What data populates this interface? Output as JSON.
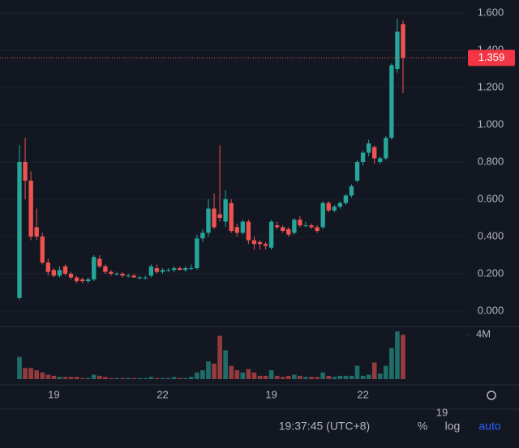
{
  "chart_data": {
    "type": "candlestick",
    "categories": [
      null,
      null,
      null,
      null,
      null,
      null,
      "19",
      null,
      null,
      null,
      null,
      null,
      null,
      null,
      null,
      null,
      null,
      null,
      null,
      null,
      null,
      null,
      null,
      null,
      null,
      "22",
      null,
      null,
      null,
      null,
      null,
      null,
      null,
      null,
      null,
      null,
      null,
      null,
      null,
      null,
      null,
      null,
      null,
      null,
      "19",
      null,
      null,
      null,
      null,
      null,
      null,
      null,
      null,
      null,
      null,
      null,
      null,
      null,
      null,
      null,
      "22",
      null,
      null,
      null,
      null,
      null,
      null,
      null
    ],
    "open": [
      0.07,
      0.8,
      0.7,
      0.45,
      0.4,
      0.26,
      0.22,
      0.19,
      0.24,
      0.2,
      0.18,
      0.17,
      0.16,
      0.17,
      0.28,
      0.24,
      0.21,
      0.2,
      0.2,
      0.19,
      0.19,
      0.18,
      0.18,
      0.19,
      0.23,
      0.21,
      0.22,
      0.22,
      0.23,
      0.22,
      0.23,
      0.23,
      0.39,
      0.42,
      0.55,
      0.52,
      0.48,
      0.58,
      0.45,
      0.42,
      0.48,
      0.38,
      0.37,
      0.36,
      0.34,
      0.46,
      0.45,
      0.44,
      0.42,
      0.49,
      0.46,
      0.46,
      0.45,
      0.45,
      0.58,
      0.54,
      0.56,
      0.58,
      0.62,
      0.7,
      0.8,
      0.85,
      0.88,
      0.8,
      0.82,
      0.93,
      1.3,
      1.54
    ],
    "high": [
      0.89,
      0.93,
      0.75,
      0.55,
      0.42,
      0.28,
      0.23,
      0.24,
      0.25,
      0.21,
      0.19,
      0.18,
      0.18,
      0.3,
      0.3,
      0.25,
      0.22,
      0.21,
      0.21,
      0.2,
      0.2,
      0.19,
      0.19,
      0.25,
      0.25,
      0.23,
      0.23,
      0.24,
      0.24,
      0.24,
      0.25,
      0.41,
      0.44,
      0.6,
      0.63,
      0.89,
      0.65,
      0.6,
      0.47,
      0.49,
      0.49,
      0.4,
      0.38,
      0.37,
      0.49,
      0.48,
      0.46,
      0.45,
      0.5,
      0.51,
      0.48,
      0.47,
      0.46,
      0.59,
      0.59,
      0.57,
      0.59,
      0.63,
      0.68,
      0.81,
      0.86,
      0.92,
      0.89,
      0.83,
      0.94,
      1.33,
      1.57,
      1.56
    ],
    "low": [
      0.06,
      0.6,
      0.38,
      0.38,
      0.25,
      0.19,
      0.18,
      0.18,
      0.19,
      0.17,
      0.15,
      0.15,
      0.15,
      0.16,
      0.23,
      0.2,
      0.19,
      0.19,
      0.18,
      0.18,
      0.18,
      0.17,
      0.17,
      0.18,
      0.2,
      0.2,
      0.21,
      0.21,
      0.22,
      0.21,
      0.22,
      0.22,
      0.37,
      0.4,
      0.44,
      0.48,
      0.45,
      0.42,
      0.4,
      0.41,
      0.36,
      0.33,
      0.33,
      0.33,
      0.33,
      0.44,
      0.42,
      0.4,
      0.41,
      0.45,
      0.45,
      0.44,
      0.42,
      0.44,
      0.53,
      0.53,
      0.55,
      0.57,
      0.61,
      0.69,
      0.78,
      0.83,
      0.79,
      0.79,
      0.81,
      0.92,
      1.28,
      1.17
    ],
    "close": [
      0.8,
      0.7,
      0.4,
      0.4,
      0.26,
      0.21,
      0.19,
      0.22,
      0.2,
      0.18,
      0.16,
      0.16,
      0.17,
      0.29,
      0.24,
      0.21,
      0.2,
      0.2,
      0.19,
      0.19,
      0.18,
      0.18,
      0.18,
      0.24,
      0.21,
      0.22,
      0.22,
      0.23,
      0.22,
      0.23,
      0.23,
      0.39,
      0.42,
      0.55,
      0.45,
      0.5,
      0.6,
      0.43,
      0.42,
      0.48,
      0.38,
      0.36,
      0.36,
      0.35,
      0.48,
      0.45,
      0.43,
      0.41,
      0.49,
      0.46,
      0.46,
      0.45,
      0.43,
      0.58,
      0.54,
      0.56,
      0.58,
      0.62,
      0.67,
      0.8,
      0.85,
      0.9,
      0.82,
      0.82,
      0.93,
      1.32,
      1.5,
      1.36
    ],
    "volume": [
      2000000,
      1000000,
      1000000,
      800000,
      600000,
      400000,
      300000,
      200000,
      200000,
      200000,
      200000,
      100000,
      100000,
      400000,
      300000,
      200000,
      100000,
      100000,
      100000,
      100000,
      100000,
      100000,
      100000,
      200000,
      100000,
      100000,
      100000,
      200000,
      100000,
      100000,
      200000,
      600000,
      800000,
      1600000,
      1400000,
      3900000,
      2600000,
      1200000,
      800000,
      600000,
      900000,
      600000,
      300000,
      300000,
      800000,
      300000,
      200000,
      300000,
      400000,
      300000,
      200000,
      200000,
      200000,
      600000,
      300000,
      200000,
      300000,
      300000,
      300000,
      1200000,
      300000,
      400000,
      1500000,
      500000,
      1200000,
      2800000,
      4300000,
      4000000
    ],
    "up_color": "#26a69a",
    "down_color": "#ef5350",
    "ylim": [
      -0.07,
      1.67
    ],
    "yticks": [
      {
        "value": 0,
        "label": "0.000"
      },
      {
        "value": 0.2,
        "label": "0.200"
      },
      {
        "value": 0.4,
        "label": "0.400"
      },
      {
        "value": 0.6,
        "label": "0.600"
      },
      {
        "value": 0.8,
        "label": "0.800"
      },
      {
        "value": 1.0,
        "label": "1.000"
      },
      {
        "value": 1.2,
        "label": "1.200"
      },
      {
        "value": 1.4,
        "label": "1.400"
      },
      {
        "value": 1.6,
        "label": "1.600"
      }
    ],
    "y2lim": [
      0,
      4600000
    ],
    "y2ticks": [
      {
        "value": 4000000,
        "label": "4M"
      }
    ],
    "last_price": 1.359,
    "grid": true
  },
  "toolbar": {
    "extra_label": "19",
    "time": "19:37:45 (UTC+8)",
    "percent": "%",
    "log": "log",
    "auto": "auto"
  }
}
